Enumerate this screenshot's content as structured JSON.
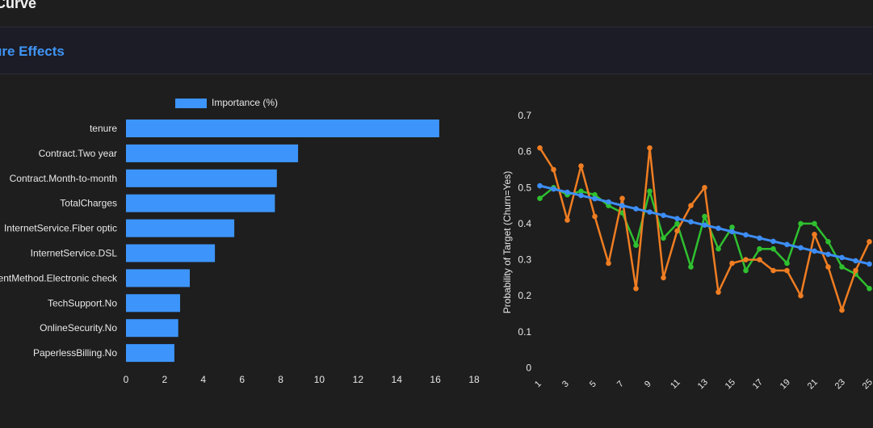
{
  "header": {
    "title": "Curve"
  },
  "section": {
    "title": "ure Effects"
  },
  "colors": {
    "bar": "#3d95fb",
    "blue": "#3d8ef7",
    "green": "#2fc02f",
    "orange": "#ef7d22",
    "text": "#e8e8e8"
  },
  "chart_data": [
    {
      "type": "bar",
      "orientation": "horizontal",
      "legend": [
        "Importance (%)"
      ],
      "legend_position": "top",
      "categories": [
        "tenure",
        "Contract.Two year",
        "Contract.Month-to-month",
        "TotalCharges",
        "InternetService.Fiber optic",
        "InternetService.DSL",
        "PaymentMethod.Electronic check",
        "TechSupport.No",
        "OnlineSecurity.No",
        "PaperlessBilling.No"
      ],
      "category_labels_shown": [
        "tenure",
        "Contract.Two year",
        "Contract.Month-to-month",
        "TotalCharges",
        "InternetService.Fiber optic",
        "InternetService.DSL",
        "entMethod.Electronic check",
        "TechSupport.No",
        "OnlineSecurity.No",
        "PaperlessBilling.No"
      ],
      "values": [
        16.2,
        8.9,
        7.8,
        7.7,
        5.6,
        4.6,
        3.3,
        2.8,
        2.7,
        2.5
      ],
      "xlim": [
        0,
        18
      ],
      "xticks": [
        "0",
        "2",
        "4",
        "6",
        "8",
        "10",
        "12",
        "14",
        "16",
        "18"
      ]
    },
    {
      "type": "line",
      "ylabel": "Probability of Target (Churn=Yes)",
      "ylim": [
        0,
        0.7
      ],
      "yticks": [
        "0",
        "0.1",
        "0.2",
        "0.3",
        "0.4",
        "0.5",
        "0.6",
        "0.7"
      ],
      "xticks": [
        "1",
        "3",
        "5",
        "7",
        "9",
        "11",
        "13",
        "15",
        "17",
        "19",
        "21",
        "23",
        "25"
      ],
      "x": [
        1,
        2,
        3,
        4,
        5,
        6,
        7,
        8,
        9,
        10,
        11,
        12,
        13,
        14,
        15,
        16,
        17,
        18,
        19,
        20,
        21,
        22,
        23,
        24,
        25
      ],
      "series": [
        {
          "name": "green",
          "values": [
            0.47,
            0.5,
            0.48,
            0.49,
            0.48,
            0.45,
            0.43,
            0.34,
            0.49,
            0.36,
            0.4,
            0.28,
            0.42,
            0.33,
            0.39,
            0.27,
            0.33,
            0.33,
            0.29,
            0.4,
            0.4,
            0.35,
            0.28,
            0.26,
            0.22
          ]
        },
        {
          "name": "orange",
          "values": [
            0.61,
            0.55,
            0.41,
            0.56,
            0.42,
            0.29,
            0.47,
            0.22,
            0.61,
            0.25,
            0.38,
            0.45,
            0.5,
            0.21,
            0.29,
            0.3,
            0.3,
            0.27,
            0.27,
            0.2,
            0.37,
            0.28,
            0.16,
            0.27,
            0.35
          ]
        },
        {
          "name": "blue",
          "values": [
            0.505,
            0.496,
            0.487,
            0.478,
            0.469,
            0.46,
            0.45,
            0.441,
            0.432,
            0.423,
            0.414,
            0.405,
            0.396,
            0.387,
            0.378,
            0.369,
            0.36,
            0.351,
            0.342,
            0.333,
            0.324,
            0.315,
            0.306,
            0.297,
            0.288
          ]
        }
      ]
    }
  ]
}
